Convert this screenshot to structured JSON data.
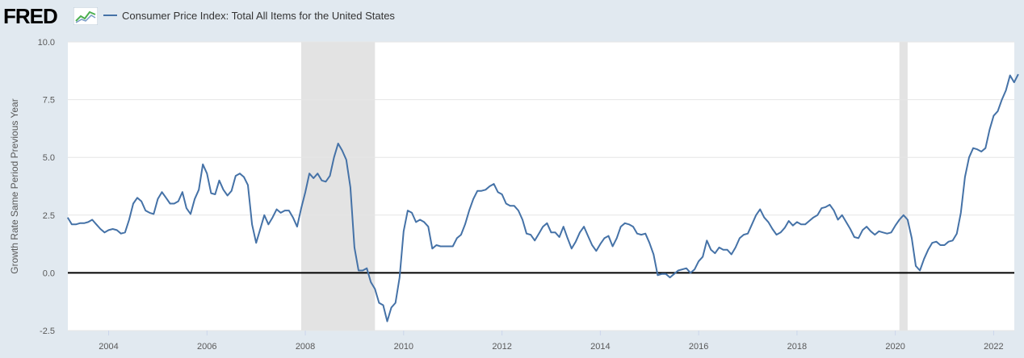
{
  "header": {
    "logo_text": "FRED",
    "legend_label": "Consumer Price Index: Total All Items for the United States"
  },
  "colors": {
    "series": "#4572a7",
    "background": "#e1e9f0",
    "plot_background": "#ffffff",
    "recession": "#e3e3e3",
    "zero_line": "#000000"
  },
  "chart_data": {
    "type": "line",
    "title": "",
    "xlabel": "",
    "ylabel": "Growth Rate Same Period Previous Year",
    "xlim": [
      2003.17,
      2022.42
    ],
    "ylim": [
      -2.5,
      10.0
    ],
    "yticks": [
      -2.5,
      0.0,
      2.5,
      5.0,
      7.5,
      10.0
    ],
    "ytick_labels": [
      "-2.5",
      "0.0",
      "2.5",
      "5.0",
      "7.5",
      "10.0"
    ],
    "xticks": [
      2004,
      2006,
      2008,
      2010,
      2012,
      2014,
      2016,
      2018,
      2020,
      2022
    ],
    "xtick_labels": [
      "2004",
      "2006",
      "2008",
      "2010",
      "2012",
      "2014",
      "2016",
      "2018",
      "2020",
      "2022"
    ],
    "reference_line": 0.0,
    "recessions": [
      {
        "start": 2007.917,
        "end": 2009.417
      },
      {
        "start": 2020.083,
        "end": 2020.25
      }
    ],
    "series": [
      {
        "name": "Consumer Price Index: Total All Items for the United States",
        "start_year": 2003,
        "start_month": 3,
        "frequency": "monthly",
        "values": [
          2.4,
          2.1,
          2.1,
          2.15,
          2.15,
          2.2,
          2.3,
          2.1,
          1.9,
          1.75,
          1.85,
          1.9,
          1.85,
          1.7,
          1.75,
          2.3,
          3.0,
          3.25,
          3.1,
          2.7,
          2.6,
          2.55,
          3.2,
          3.5,
          3.25,
          3.0,
          3.0,
          3.1,
          3.5,
          2.8,
          2.55,
          3.2,
          3.6,
          4.7,
          4.3,
          3.45,
          3.4,
          4.0,
          3.6,
          3.35,
          3.55,
          4.2,
          4.3,
          4.15,
          3.8,
          2.1,
          1.3,
          1.9,
          2.5,
          2.1,
          2.4,
          2.75,
          2.6,
          2.7,
          2.7,
          2.4,
          2.0,
          2.8,
          3.5,
          4.3,
          4.1,
          4.3,
          4.0,
          3.95,
          4.2,
          5.0,
          5.6,
          5.3,
          4.9,
          3.7,
          1.1,
          0.1,
          0.1,
          0.2,
          -0.4,
          -0.7,
          -1.3,
          -1.4,
          -2.1,
          -1.5,
          -1.3,
          -0.2,
          1.8,
          2.7,
          2.6,
          2.2,
          2.3,
          2.2,
          2.0,
          1.05,
          1.2,
          1.15,
          1.15,
          1.15,
          1.15,
          1.5,
          1.65,
          2.1,
          2.7,
          3.2,
          3.55,
          3.55,
          3.6,
          3.75,
          3.85,
          3.5,
          3.4,
          3.0,
          2.9,
          2.9,
          2.7,
          2.3,
          1.7,
          1.65,
          1.4,
          1.7,
          2.0,
          2.15,
          1.75,
          1.75,
          1.55,
          2.0,
          1.5,
          1.05,
          1.35,
          1.75,
          2.0,
          1.6,
          1.2,
          0.95,
          1.25,
          1.5,
          1.6,
          1.15,
          1.5,
          2.0,
          2.15,
          2.1,
          2.0,
          1.7,
          1.65,
          1.7,
          1.3,
          0.8,
          -0.1,
          -0.05,
          -0.05,
          -0.2,
          -0.05,
          0.1,
          0.15,
          0.2,
          0.0,
          0.15,
          0.5,
          0.7,
          1.4,
          1.0,
          0.85,
          1.1,
          1.0,
          1.0,
          0.8,
          1.1,
          1.5,
          1.65,
          1.7,
          2.1,
          2.5,
          2.75,
          2.4,
          2.2,
          1.9,
          1.65,
          1.75,
          1.95,
          2.25,
          2.05,
          2.2,
          2.1,
          2.1,
          2.25,
          2.4,
          2.5,
          2.8,
          2.85,
          2.95,
          2.7,
          2.3,
          2.5,
          2.2,
          1.9,
          1.55,
          1.5,
          1.85,
          2.0,
          1.8,
          1.65,
          1.8,
          1.75,
          1.7,
          1.75,
          2.05,
          2.3,
          2.5,
          2.3,
          1.5,
          0.3,
          0.1,
          0.6,
          1.0,
          1.3,
          1.35,
          1.2,
          1.2,
          1.35,
          1.4,
          1.7,
          2.6,
          4.15,
          5.0,
          5.4,
          5.35,
          5.25,
          5.4,
          6.2,
          6.8,
          7.0,
          7.5,
          7.9,
          8.55,
          8.25,
          8.6
        ]
      }
    ]
  }
}
